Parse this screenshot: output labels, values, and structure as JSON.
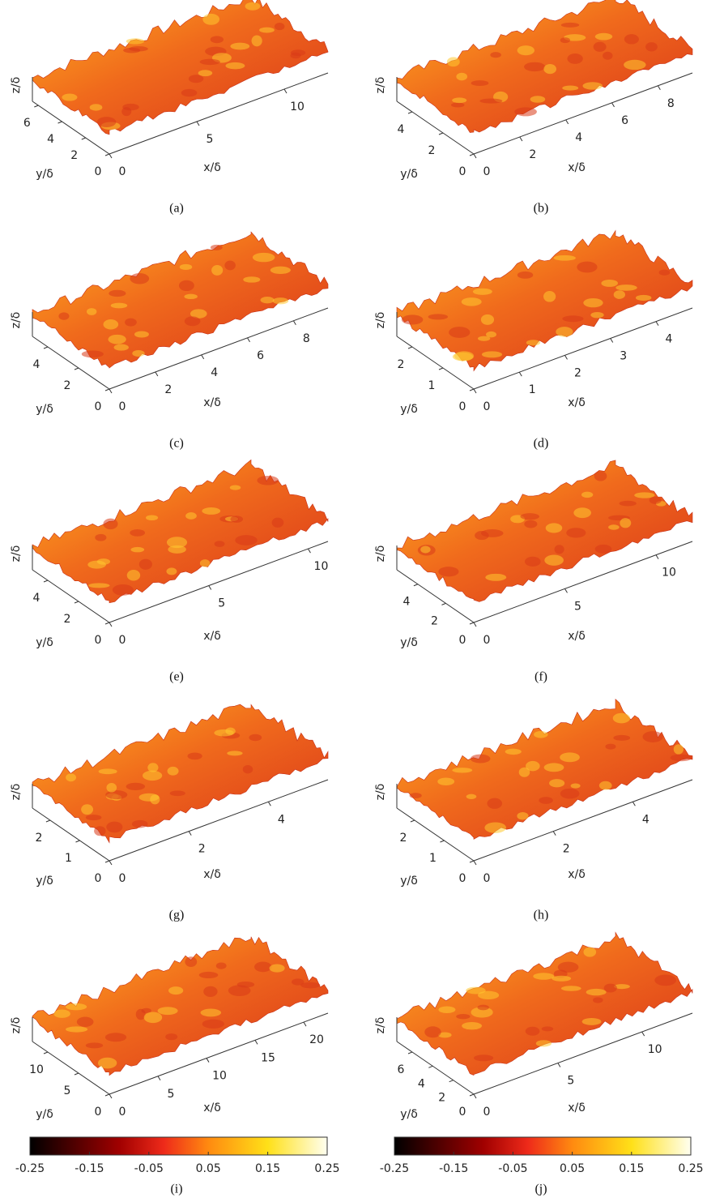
{
  "panels": [
    {
      "caption": "(a)",
      "z_label": "z/δ",
      "y_label": "y/δ",
      "x_label": "x/δ",
      "yticks": [
        6,
        4,
        2,
        0
      ],
      "xticks": [
        0,
        5,
        10
      ]
    },
    {
      "caption": "(b)",
      "z_label": "z/δ",
      "y_label": "y/δ",
      "x_label": "x/δ",
      "yticks": [
        4,
        2,
        0
      ],
      "xticks": [
        0,
        2,
        4,
        6,
        8
      ]
    },
    {
      "caption": "(c)",
      "z_label": "z/δ",
      "y_label": "y/δ",
      "x_label": "x/δ",
      "yticks": [
        4,
        2,
        0
      ],
      "xticks": [
        0,
        2,
        4,
        6,
        8
      ]
    },
    {
      "caption": "(d)",
      "z_label": "z/δ",
      "y_label": "y/δ",
      "x_label": "x/δ",
      "yticks": [
        2,
        1,
        0
      ],
      "xticks": [
        0,
        1,
        2,
        3,
        4
      ]
    },
    {
      "caption": "(e)",
      "z_label": "z/δ",
      "y_label": "y/δ",
      "x_label": "x/δ",
      "yticks": [
        4,
        2,
        0
      ],
      "xticks": [
        0,
        5,
        10
      ]
    },
    {
      "caption": "(f)",
      "z_label": "z/δ",
      "y_label": "y/δ",
      "x_label": "x/δ",
      "yticks": [
        4,
        2,
        0
      ],
      "xticks": [
        0,
        5,
        10
      ]
    },
    {
      "caption": "(g)",
      "z_label": "z/δ",
      "y_label": "y/δ",
      "x_label": "x/δ",
      "yticks": [
        2,
        1,
        0
      ],
      "xticks": [
        0,
        2,
        4
      ]
    },
    {
      "caption": "(h)",
      "z_label": "z/δ",
      "y_label": "y/δ",
      "x_label": "x/δ",
      "yticks": [
        2,
        1,
        0
      ],
      "xticks": [
        0,
        2,
        4
      ]
    },
    {
      "caption": "(i)",
      "z_label": "z/δ",
      "y_label": "y/δ",
      "x_label": "x/δ",
      "yticks": [
        10,
        5,
        0
      ],
      "xticks": [
        0,
        5,
        10,
        15,
        20
      ]
    },
    {
      "caption": "(j)",
      "z_label": "z/δ",
      "y_label": "y/δ",
      "x_label": "x/δ",
      "yticks": [
        6,
        4,
        2,
        0
      ],
      "xticks": [
        0,
        5,
        10
      ]
    }
  ],
  "colorbars": [
    {
      "ticks": [
        -0.25,
        -0.15,
        -0.05,
        0.05,
        0.15,
        0.25
      ]
    },
    {
      "ticks": [
        -0.25,
        -0.15,
        -0.05,
        0.05,
        0.15,
        0.25
      ]
    }
  ]
}
